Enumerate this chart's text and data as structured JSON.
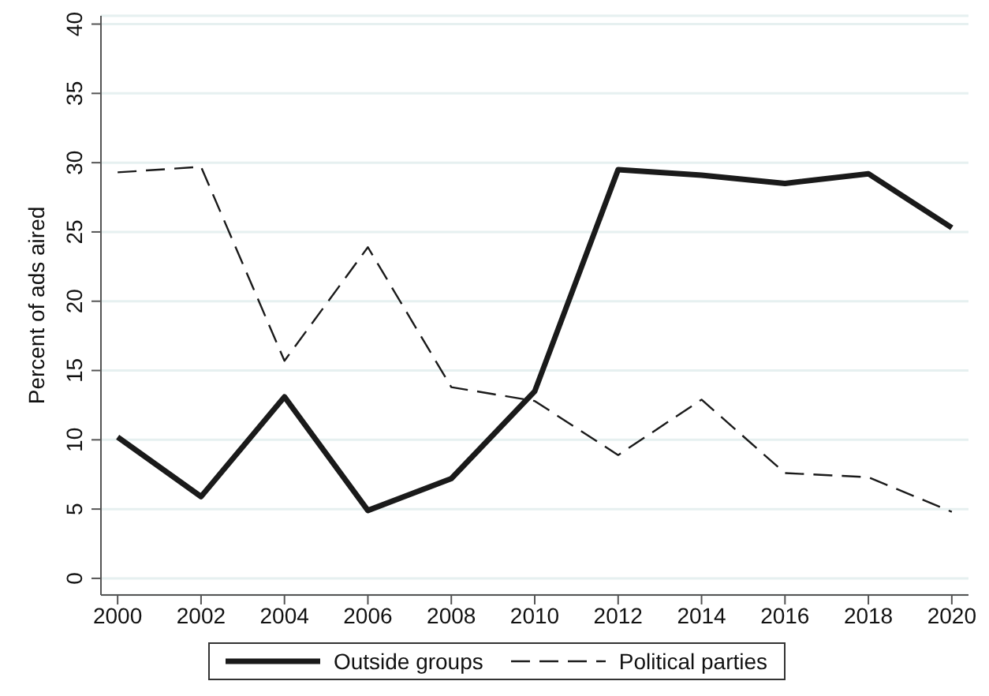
{
  "chart_data": {
    "type": "line",
    "ylabel": "Percent of ads aired",
    "x": [
      2000,
      2002,
      2004,
      2006,
      2008,
      2010,
      2012,
      2014,
      2016,
      2018,
      2020
    ],
    "series": [
      {
        "name": "Outside groups",
        "color": "#1a1a1a",
        "line_style": "solid",
        "values": [
          10.2,
          5.9,
          13.1,
          4.9,
          7.2,
          13.5,
          29.5,
          29.1,
          28.5,
          29.2,
          25.3
        ]
      },
      {
        "name": "Political parties",
        "color": "#1a1a1a",
        "line_style": "dashed",
        "values": [
          29.3,
          29.7,
          15.7,
          23.9,
          13.8,
          12.8,
          8.9,
          12.9,
          7.6,
          7.3,
          4.8
        ]
      }
    ],
    "xlim": [
      1999.6,
      2020.4
    ],
    "xticks": [
      2000,
      2002,
      2004,
      2006,
      2008,
      2010,
      2012,
      2014,
      2016,
      2018,
      2020
    ],
    "ylim": [
      -1.2,
      40.6
    ],
    "yticks": [
      0,
      5,
      10,
      15,
      20,
      25,
      30,
      35,
      40
    ],
    "grid": "y",
    "legend": "bottom",
    "marker": "none"
  }
}
